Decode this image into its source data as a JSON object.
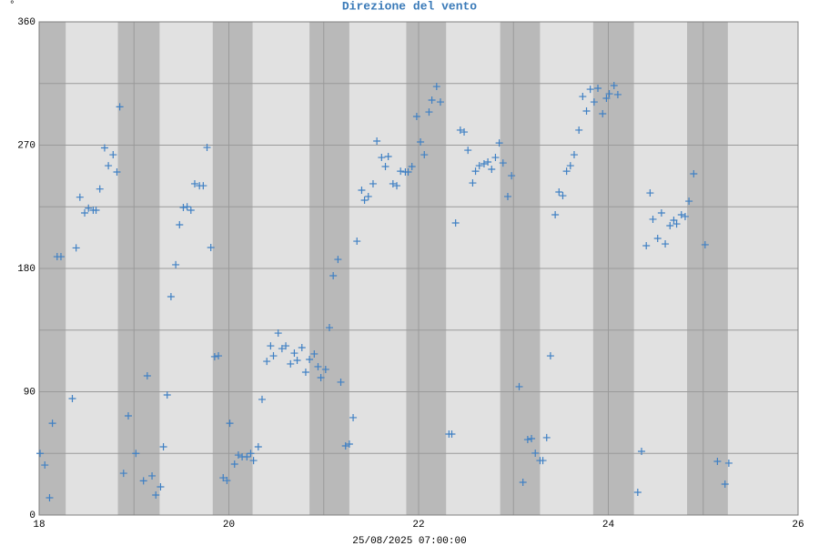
{
  "chart_data": {
    "type": "scatter",
    "title": "Direzione del vento",
    "y_unit": "°",
    "xlabel": "25/08/2025 07:00:00",
    "xlim": [
      18,
      26
    ],
    "xticks": [
      18,
      20,
      22,
      24,
      26
    ],
    "xminor": [
      19,
      21,
      23,
      25
    ],
    "ylim": [
      0,
      360
    ],
    "yticks": [
      0,
      90,
      180,
      270,
      360
    ],
    "yminor": [
      45,
      135,
      225,
      315
    ],
    "grid": true,
    "shaded_ranges": [
      [
        18.0,
        18.28
      ],
      [
        18.83,
        19.27
      ],
      [
        19.83,
        20.25
      ],
      [
        20.85,
        21.27
      ],
      [
        21.87,
        22.29
      ],
      [
        22.86,
        23.28
      ],
      [
        23.84,
        24.27
      ],
      [
        24.83,
        25.26
      ]
    ],
    "series": [
      {
        "color": "#3f80c4",
        "x": [
          18.01,
          18.06,
          18.11,
          18.14,
          18.19,
          18.23,
          18.35,
          18.39,
          18.43,
          18.48,
          18.52,
          18.57,
          18.6,
          18.64,
          18.69,
          18.73,
          18.78,
          18.82,
          18.85,
          18.89,
          18.94,
          19.02,
          19.1,
          19.14,
          19.19,
          19.23,
          19.28,
          19.31,
          19.35,
          19.39,
          19.44,
          19.48,
          19.52,
          19.56,
          19.6,
          19.64,
          19.69,
          19.73,
          19.77,
          19.81,
          19.85,
          19.89,
          19.94,
          19.98,
          20.01,
          20.06,
          20.1,
          20.14,
          20.19,
          20.23,
          20.26,
          20.31,
          20.35,
          20.4,
          20.44,
          20.47,
          20.52,
          20.56,
          20.6,
          20.65,
          20.69,
          20.72,
          20.77,
          20.81,
          20.85,
          20.9,
          20.94,
          20.97,
          21.02,
          21.06,
          21.1,
          21.15,
          21.18,
          21.23,
          21.27,
          21.31,
          21.35,
          21.4,
          21.43,
          21.47,
          21.52,
          21.56,
          21.61,
          21.65,
          21.68,
          21.73,
          21.77,
          21.81,
          21.86,
          21.89,
          21.93,
          21.98,
          22.02,
          22.06,
          22.11,
          22.14,
          22.19,
          22.23,
          22.32,
          22.35,
          22.39,
          22.44,
          22.48,
          22.52,
          22.57,
          22.6,
          22.64,
          22.69,
          22.73,
          22.77,
          22.81,
          22.85,
          22.89,
          22.94,
          22.98,
          23.06,
          23.1,
          23.15,
          23.19,
          23.23,
          23.28,
          23.31,
          23.35,
          23.39,
          23.44,
          23.48,
          23.52,
          23.56,
          23.6,
          23.64,
          23.69,
          23.73,
          23.77,
          23.81,
          23.85,
          23.89,
          23.94,
          23.98,
          24.01,
          24.06,
          24.1,
          24.31,
          24.35,
          24.4,
          24.44,
          24.47,
          24.52,
          24.56,
          24.6,
          24.65,
          24.69,
          24.72,
          24.77,
          24.81,
          24.85,
          24.9,
          25.02,
          25.15,
          25.23,
          25.27
        ],
        "values": [
          45,
          36.5,
          12.6,
          67,
          188.6,
          188.6,
          85,
          195,
          232,
          220.5,
          224,
          222.5,
          222.5,
          238,
          268,
          255,
          263,
          250.4,
          298,
          30.5,
          72.4,
          45,
          25,
          101.6,
          28.6,
          14.6,
          20.6,
          49.8,
          87.7,
          159.4,
          182.7,
          211.9,
          224.5,
          225,
          222.5,
          241.8,
          240.4,
          240.4,
          268.3,
          195.3,
          115.6,
          116.2,
          27.2,
          25.2,
          67,
          37.2,
          43.8,
          42.5,
          42.5,
          45,
          39.8,
          49.8,
          84.4,
          112.2,
          123.5,
          116.2,
          132.8,
          121.5,
          123.5,
          110.3,
          118.2,
          112.9,
          122.2,
          104.3,
          113.6,
          117.6,
          108.3,
          100.3,
          106.3,
          136.8,
          174.7,
          186.6,
          97,
          50.5,
          51.8,
          71.1,
          199.9,
          237.1,
          229.8,
          232.5,
          241.8,
          273,
          261,
          254.4,
          261.7,
          241.8,
          240.4,
          251,
          250.4,
          250.4,
          254.4,
          290.9,
          272.3,
          263,
          294.2,
          302.9,
          312.8,
          301.5,
          59.1,
          59.1,
          213.2,
          281,
          279.6,
          266.3,
          242.4,
          251,
          255,
          256.4,
          257.7,
          252.4,
          261,
          271.6,
          257,
          232.5,
          247.7,
          93.7,
          23.9,
          55.1,
          55.8,
          45.2,
          39.8,
          39.8,
          56.5,
          116.2,
          219.2,
          235.8,
          233.1,
          251,
          255,
          263,
          281,
          305.5,
          294.9,
          310.8,
          301.5,
          311.5,
          292.9,
          304.2,
          307.5,
          313.5,
          306.9,
          16.6,
          46.5,
          196.6,
          235.1,
          215.9,
          201.9,
          220.5,
          197.9,
          211.2,
          215.2,
          212.5,
          219.2,
          217.9,
          229.1,
          249.1,
          197.3,
          39.2,
          22.6,
          37.9
        ]
      }
    ]
  }
}
